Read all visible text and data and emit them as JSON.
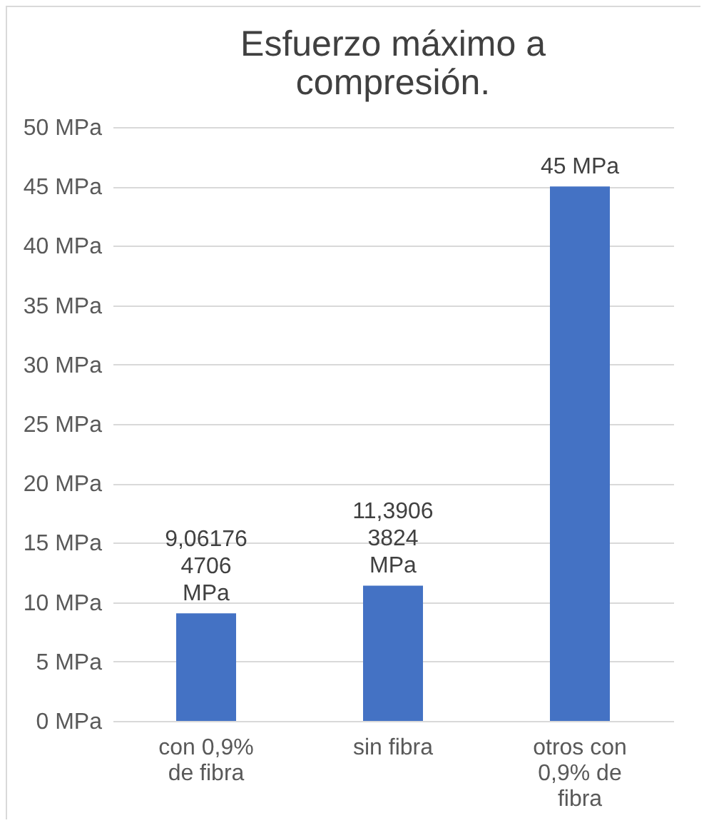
{
  "chart_data": {
    "type": "bar",
    "title": "Esfuerzo máximo a compresión.",
    "categories": [
      "con 0,9% de fibra",
      "sin fibra",
      "otros con 0,9% de fibra"
    ],
    "values": [
      9.061764706,
      11.39063824,
      45
    ],
    "color": "#4472c4",
    "value_labels": [
      "9,061764706 MPa",
      "11,39063824 MPa",
      "45 MPa"
    ],
    "ylim": [
      0,
      50
    ],
    "yticks": [
      {
        "value": 0,
        "label": "0 MPa"
      },
      {
        "value": 5,
        "label": "5 MPa"
      },
      {
        "value": 10,
        "label": "10 MPa"
      },
      {
        "value": 15,
        "label": "15 MPa"
      },
      {
        "value": 20,
        "label": "20 MPa"
      },
      {
        "value": 25,
        "label": "25 MPa"
      },
      {
        "value": 30,
        "label": "30 MPa"
      },
      {
        "value": 35,
        "label": "35 MPa"
      },
      {
        "value": 40,
        "label": "40 MPa"
      },
      {
        "value": 45,
        "label": "45 MPa"
      },
      {
        "value": 50,
        "label": "50 MPa"
      }
    ],
    "grid": "y"
  }
}
